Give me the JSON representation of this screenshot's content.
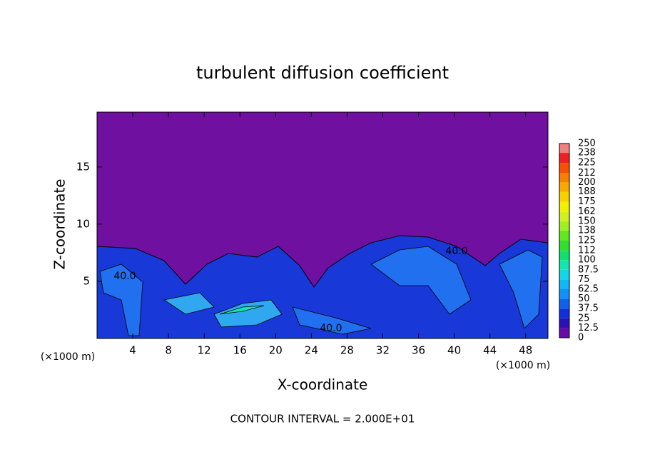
{
  "chart_data": {
    "type": "contour",
    "title": "turbulent diffusion coefficient",
    "xlabel": "X-coordinate",
    "ylabel": "Z-coordinate",
    "x_unit_label": "(×1000 m)",
    "annotation": "CONTOUR INTERVAL = 2.000E+01",
    "contour_labels": [
      "40.0",
      "40.0",
      "40.0"
    ],
    "xlim": [
      0,
      50.5
    ],
    "ylim": [
      0,
      19.8
    ],
    "xticks": [
      4,
      8,
      12,
      16,
      20,
      24,
      28,
      32,
      36,
      40,
      44,
      48
    ],
    "yticks": [
      5,
      10,
      15
    ],
    "colorbar_ticks": [
      0,
      12.5,
      25,
      37.5,
      50,
      62.5,
      75,
      87.5,
      100,
      112,
      125,
      138,
      150,
      162,
      175,
      188,
      200,
      212,
      225,
      238,
      250
    ],
    "colorbar_colors": [
      "#6a0aa8",
      "#2a10b8",
      "#1030e0",
      "#1060f0",
      "#1090f8",
      "#10b8f8",
      "#10d8e8",
      "#10e8b0",
      "#10e070",
      "#30e030",
      "#60e820",
      "#a0f020",
      "#d0f020",
      "#f0f000",
      "#f8d000",
      "#f8a800",
      "#f88000",
      "#f85000",
      "#f02020",
      "#f08080"
    ]
  }
}
